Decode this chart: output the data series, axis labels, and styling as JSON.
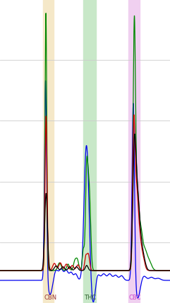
{
  "figsize": [
    2.41,
    4.31
  ],
  "dpi": 100,
  "bg_color": "#ffffff",
  "grid_color": "#cccccc",
  "label_CBN": "CBN",
  "label_THC": "THC",
  "label_CBC": "CBC",
  "label_CBN_color": "#993333",
  "label_THC_color": "#336633",
  "label_CBC_color": "#cc44cc",
  "band_CBN": [
    0.255,
    0.315
  ],
  "band_THC": [
    0.49,
    0.565
  ],
  "band_CBC": [
    0.755,
    0.82
  ],
  "band_CBN_color": "#f5e8c8",
  "band_THC_color": "#c8e8c8",
  "band_CBC_color": "#f0d0f0",
  "line_colors": [
    "#0000ee",
    "#008800",
    "#cc0000",
    "#000000"
  ],
  "xlim": [
    0,
    1
  ],
  "ylim": [
    -0.13,
    1.05
  ],
  "n_gridlines": 5
}
